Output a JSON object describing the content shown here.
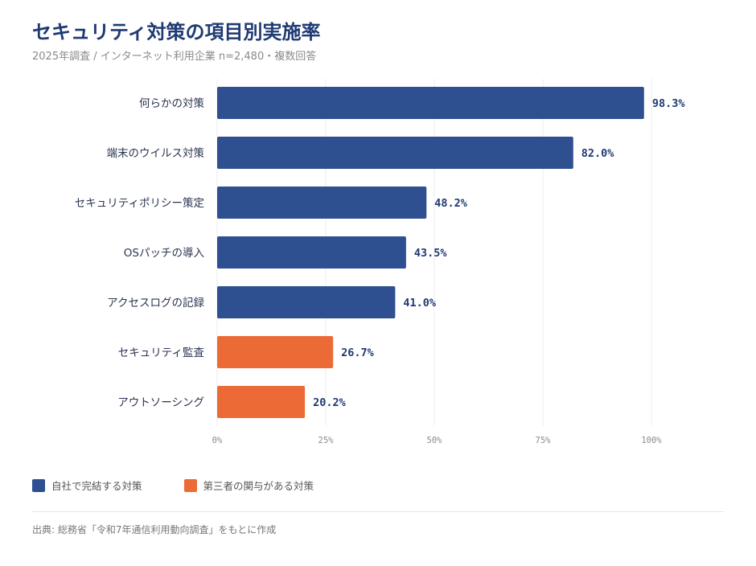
{
  "header": {
    "title": "セキュリティ対策の項目別実施率",
    "subtitle": "2025年調査 / インターネット利用企業 n=2,480・複数回答"
  },
  "colors": {
    "internal": "#2e5090",
    "external": "#ec6a35",
    "grid": "#ececec"
  },
  "chart_data": {
    "type": "bar",
    "orientation": "horizontal",
    "categories": [
      "何らかの対策",
      "端末のウイルス対策",
      "セキュリティポリシー策定",
      "OSパッチの導入",
      "アクセスログの記録",
      "セキュリティ監査",
      "アウトソーシング"
    ],
    "values": [
      98.3,
      82.0,
      48.2,
      43.5,
      41.0,
      26.7,
      20.2
    ],
    "value_labels": [
      "98.3%",
      "82.0%",
      "48.2%",
      "43.5%",
      "41.0%",
      "26.7%",
      "20.2%"
    ],
    "groups": [
      "internal",
      "internal",
      "internal",
      "internal",
      "internal",
      "external",
      "external"
    ],
    "xlim": [
      0,
      100
    ],
    "xticks": [
      0,
      25,
      50,
      75,
      100
    ],
    "xtick_labels": [
      "0%",
      "25%",
      "50%",
      "75%",
      "100%"
    ],
    "grid": true
  },
  "legend": {
    "internal_label": "自社で完結する対策",
    "external_label": "第三者の関与がある対策"
  },
  "footer": {
    "source": "出典: 総務省「令和7年通信利用動向調査」をもとに作成"
  }
}
